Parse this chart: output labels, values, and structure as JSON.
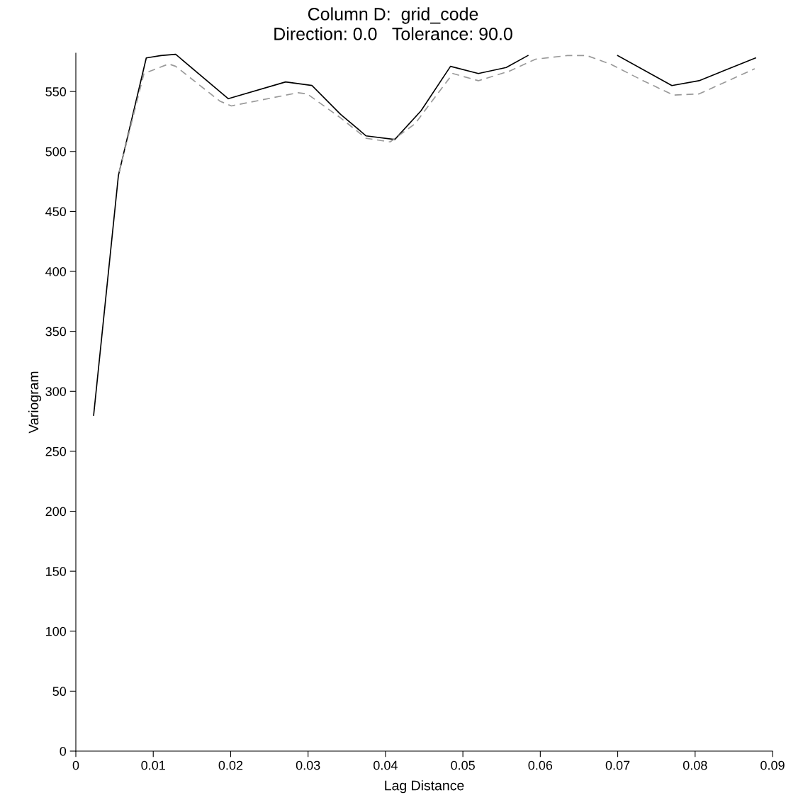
{
  "chart_data": {
    "type": "line",
    "title": "Column D:  grid_code",
    "subtitle": "Direction: 0.0   Tolerance: 90.0",
    "xlabel": "Lag Distance",
    "ylabel": "Variogram",
    "series": [
      {
        "color": "#000000",
        "line_style": "solid",
        "x": [
          0.0023,
          0.0055,
          0.0091,
          0.011,
          0.0129,
          0.0197,
          0.0271,
          0.0305,
          0.0342,
          0.0375,
          0.0412,
          0.0446,
          0.0484,
          0.052,
          0.0556,
          0.0584,
          0.064,
          0.07,
          0.077,
          0.0805,
          0.0878
        ],
        "values": [
          280,
          480,
          578,
          580,
          581,
          544,
          558,
          555,
          531,
          513,
          510,
          534,
          571,
          565,
          570,
          580,
          null,
          580,
          555,
          559,
          578
        ]
      },
      {
        "color": "#999999",
        "line_style": "dashed",
        "x": [
          0.0056,
          0.0088,
          0.012,
          0.0129,
          0.0186,
          0.0201,
          0.0287,
          0.0299,
          0.0342,
          0.0375,
          0.0406,
          0.0438,
          0.0487,
          0.052,
          0.056,
          0.0594,
          0.0635,
          0.066,
          0.069,
          0.0733,
          0.0772,
          0.0805,
          0.0877
        ],
        "values": [
          483,
          565,
          573,
          571,
          542,
          538,
          549,
          548,
          528,
          511,
          508,
          523,
          565,
          559,
          567,
          577,
          580,
          580,
          573,
          559,
          547,
          548,
          569
        ]
      }
    ],
    "xlim": [
      0,
      0.09
    ],
    "xticks": [
      0,
      0.01,
      0.02,
      0.03,
      0.04,
      0.05,
      0.06,
      0.07,
      0.08,
      0.09
    ],
    "ylim": [
      0,
      582
    ],
    "yticks": [
      0,
      50,
      100,
      150,
      200,
      250,
      300,
      350,
      400,
      450,
      500,
      550
    ],
    "grid": false,
    "marker": "none"
  }
}
